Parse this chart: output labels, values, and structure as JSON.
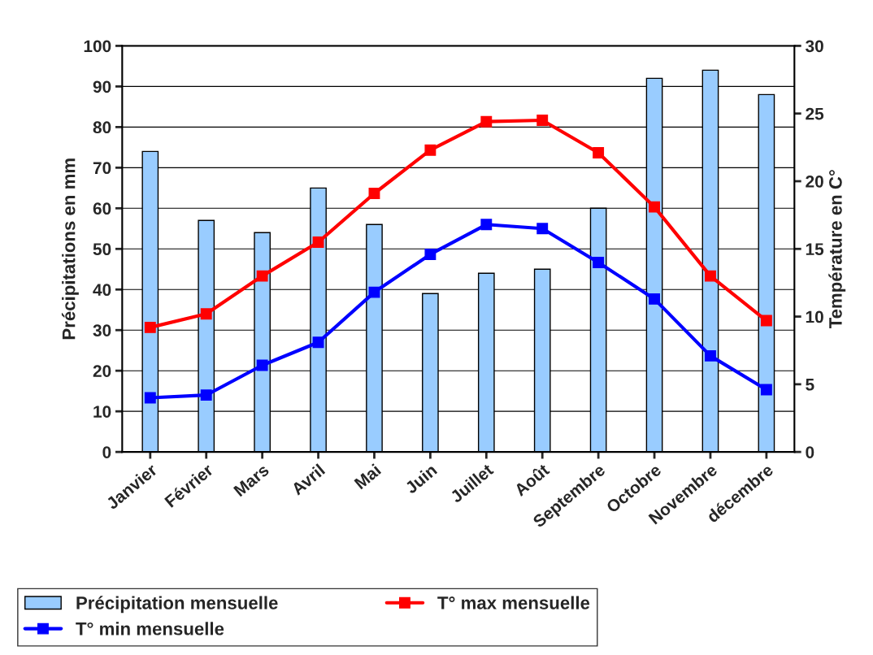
{
  "chart_data": {
    "type": "bar",
    "categories": [
      "Janvier",
      "Février",
      "Mars",
      "Avril",
      "Mai",
      "Juin",
      "Juillet",
      "Août",
      "Septembre",
      "Octobre",
      "Novembre",
      "décembre"
    ],
    "ylabel": "Précipitations en mm",
    "y2label": "Température en C°",
    "ylim": [
      0,
      100
    ],
    "yticks": [
      0,
      10,
      20,
      30,
      40,
      50,
      60,
      70,
      80,
      90,
      100
    ],
    "y2lim": [
      0,
      30
    ],
    "y2ticks": [
      0,
      5,
      10,
      15,
      20,
      25,
      30
    ],
    "grid": "y",
    "legend": "bottom",
    "marker": "square",
    "line_style": "solid",
    "series": [
      {
        "name": "Précipitation mensuelle",
        "color": "#99ccff",
        "values": [
          74,
          57,
          54,
          65,
          56,
          39,
          44,
          45,
          60,
          92,
          94,
          88
        ]
      },
      {
        "name": "T° min mensuelle",
        "type": "line",
        "axis": "y2",
        "color": "#0000ff",
        "values": [
          4.0,
          4.2,
          6.4,
          8.1,
          11.8,
          14.6,
          16.8,
          16.5,
          14.0,
          11.3,
          7.1,
          4.6
        ]
      },
      {
        "name": "T° max mensuelle",
        "type": "line",
        "axis": "y2",
        "color": "#ff0000",
        "values": [
          9.2,
          10.2,
          13.0,
          15.5,
          19.1,
          22.3,
          24.4,
          24.5,
          22.1,
          18.1,
          13.0,
          9.7
        ]
      }
    ]
  }
}
